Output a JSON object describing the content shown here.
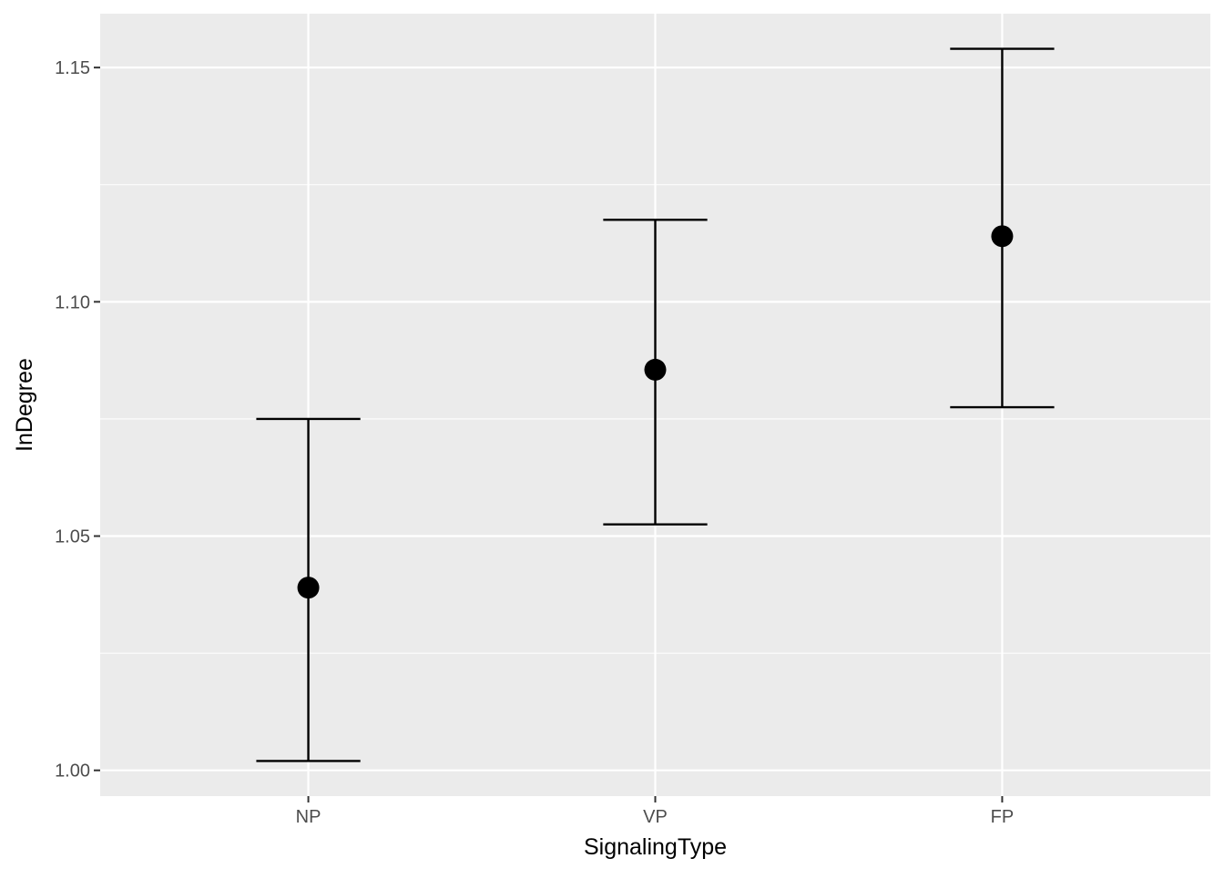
{
  "colors": {
    "panel_background": "#EBEBEB",
    "grid_major": "#FFFFFF",
    "grid_minor": "#F5F5F5",
    "marks": "#000000",
    "tick_text": "#4D4D4D",
    "axis_title_text": "#000000"
  },
  "chart_data": {
    "type": "scatter",
    "title": "",
    "xlabel": "SignalingType",
    "ylabel": "InDegree",
    "categories": [
      "NP",
      "VP",
      "FP"
    ],
    "points": [
      {
        "category": "NP",
        "mean": 1.039,
        "lower": 1.002,
        "upper": 1.075
      },
      {
        "category": "VP",
        "mean": 1.0855,
        "lower": 1.0525,
        "upper": 1.1175
      },
      {
        "category": "FP",
        "mean": 1.114,
        "lower": 1.0775,
        "upper": 1.154
      }
    ],
    "ylim": [
      0.9945,
      1.1615
    ],
    "yticks": [
      1.0,
      1.05,
      1.1,
      1.15
    ],
    "ytick_labels": [
      "1.00",
      "1.05",
      "1.10",
      "1.15"
    ],
    "grid": true,
    "legend": "none",
    "error_bars": true
  }
}
